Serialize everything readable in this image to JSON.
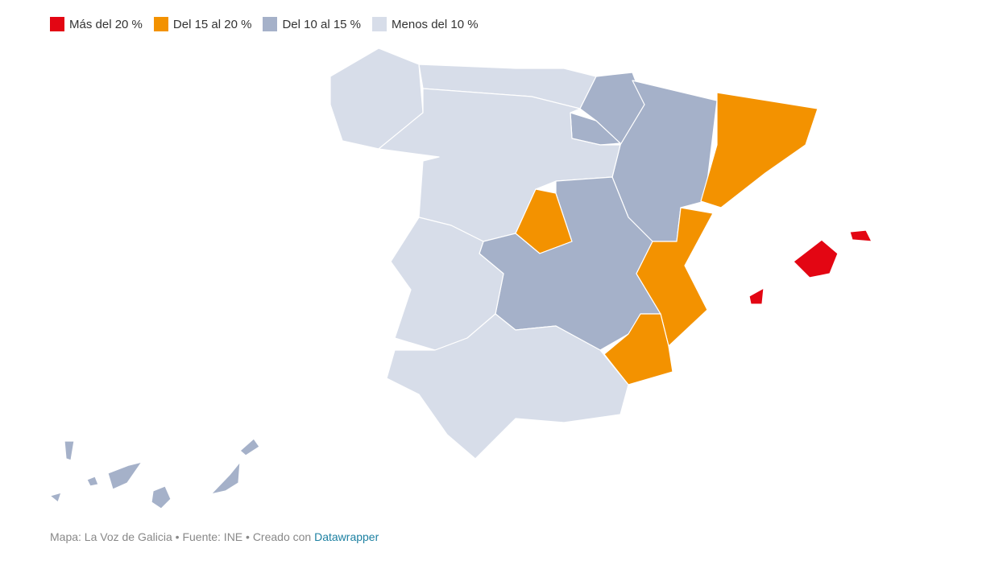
{
  "legend": [
    {
      "label": "Más del 20 %",
      "color": "#e30613"
    },
    {
      "label": "Del 15 al 20 %",
      "color": "#f39200"
    },
    {
      "label": "Del 10 al 15 %",
      "color": "#a5b1c9"
    },
    {
      "label": "Menos del 10 %",
      "color": "#d7dde9"
    }
  ],
  "footer": {
    "text": "Mapa: La Voz de Galicia • Fuente: INE • Creado con",
    "link": "Datawrapper"
  }
}
